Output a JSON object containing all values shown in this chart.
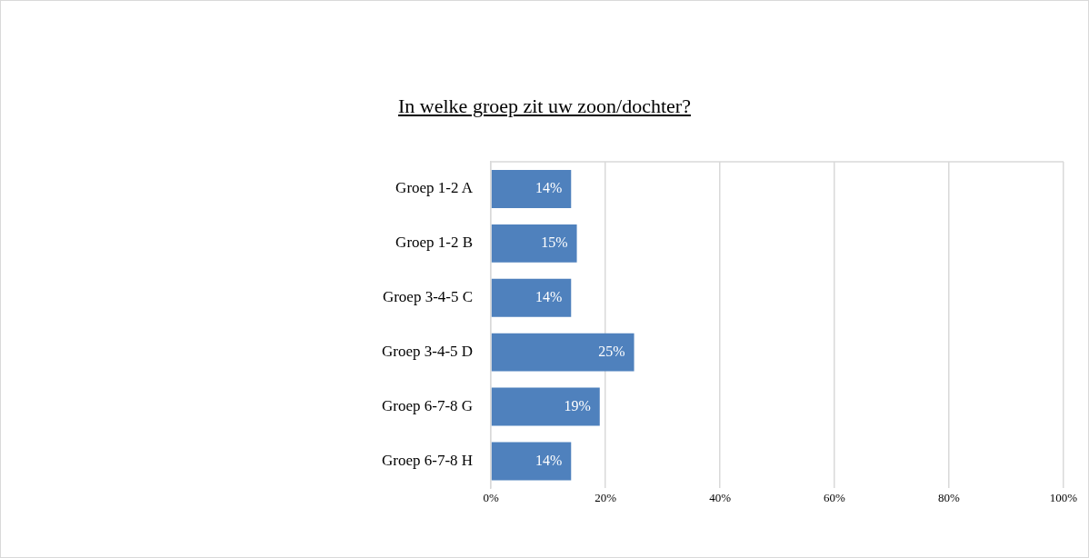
{
  "chart_data": {
    "type": "bar",
    "orientation": "horizontal",
    "title": "In welke groep zit uw zoon/dochter?",
    "categories": [
      "Groep 1-2 A",
      "Groep 1-2 B",
      "Groep 3-4-5 C",
      "Groep 3-4-5 D",
      "Groep 6-7-8 G",
      "Groep 6-7-8 H"
    ],
    "values": [
      14,
      15,
      14,
      25,
      19,
      14
    ],
    "value_labels": [
      "14%",
      "15%",
      "14%",
      "25%",
      "19%",
      "14%"
    ],
    "color": "#4f81bd",
    "xlim": [
      0,
      100
    ],
    "xticks": [
      {
        "value": 0,
        "label": "0%"
      },
      {
        "value": 20,
        "label": "20%"
      },
      {
        "value": 40,
        "label": "40%"
      },
      {
        "value": 60,
        "label": "60%"
      },
      {
        "value": 80,
        "label": "80%"
      },
      {
        "value": 100,
        "label": "100%"
      }
    ],
    "grid": "x",
    "legend": false
  }
}
